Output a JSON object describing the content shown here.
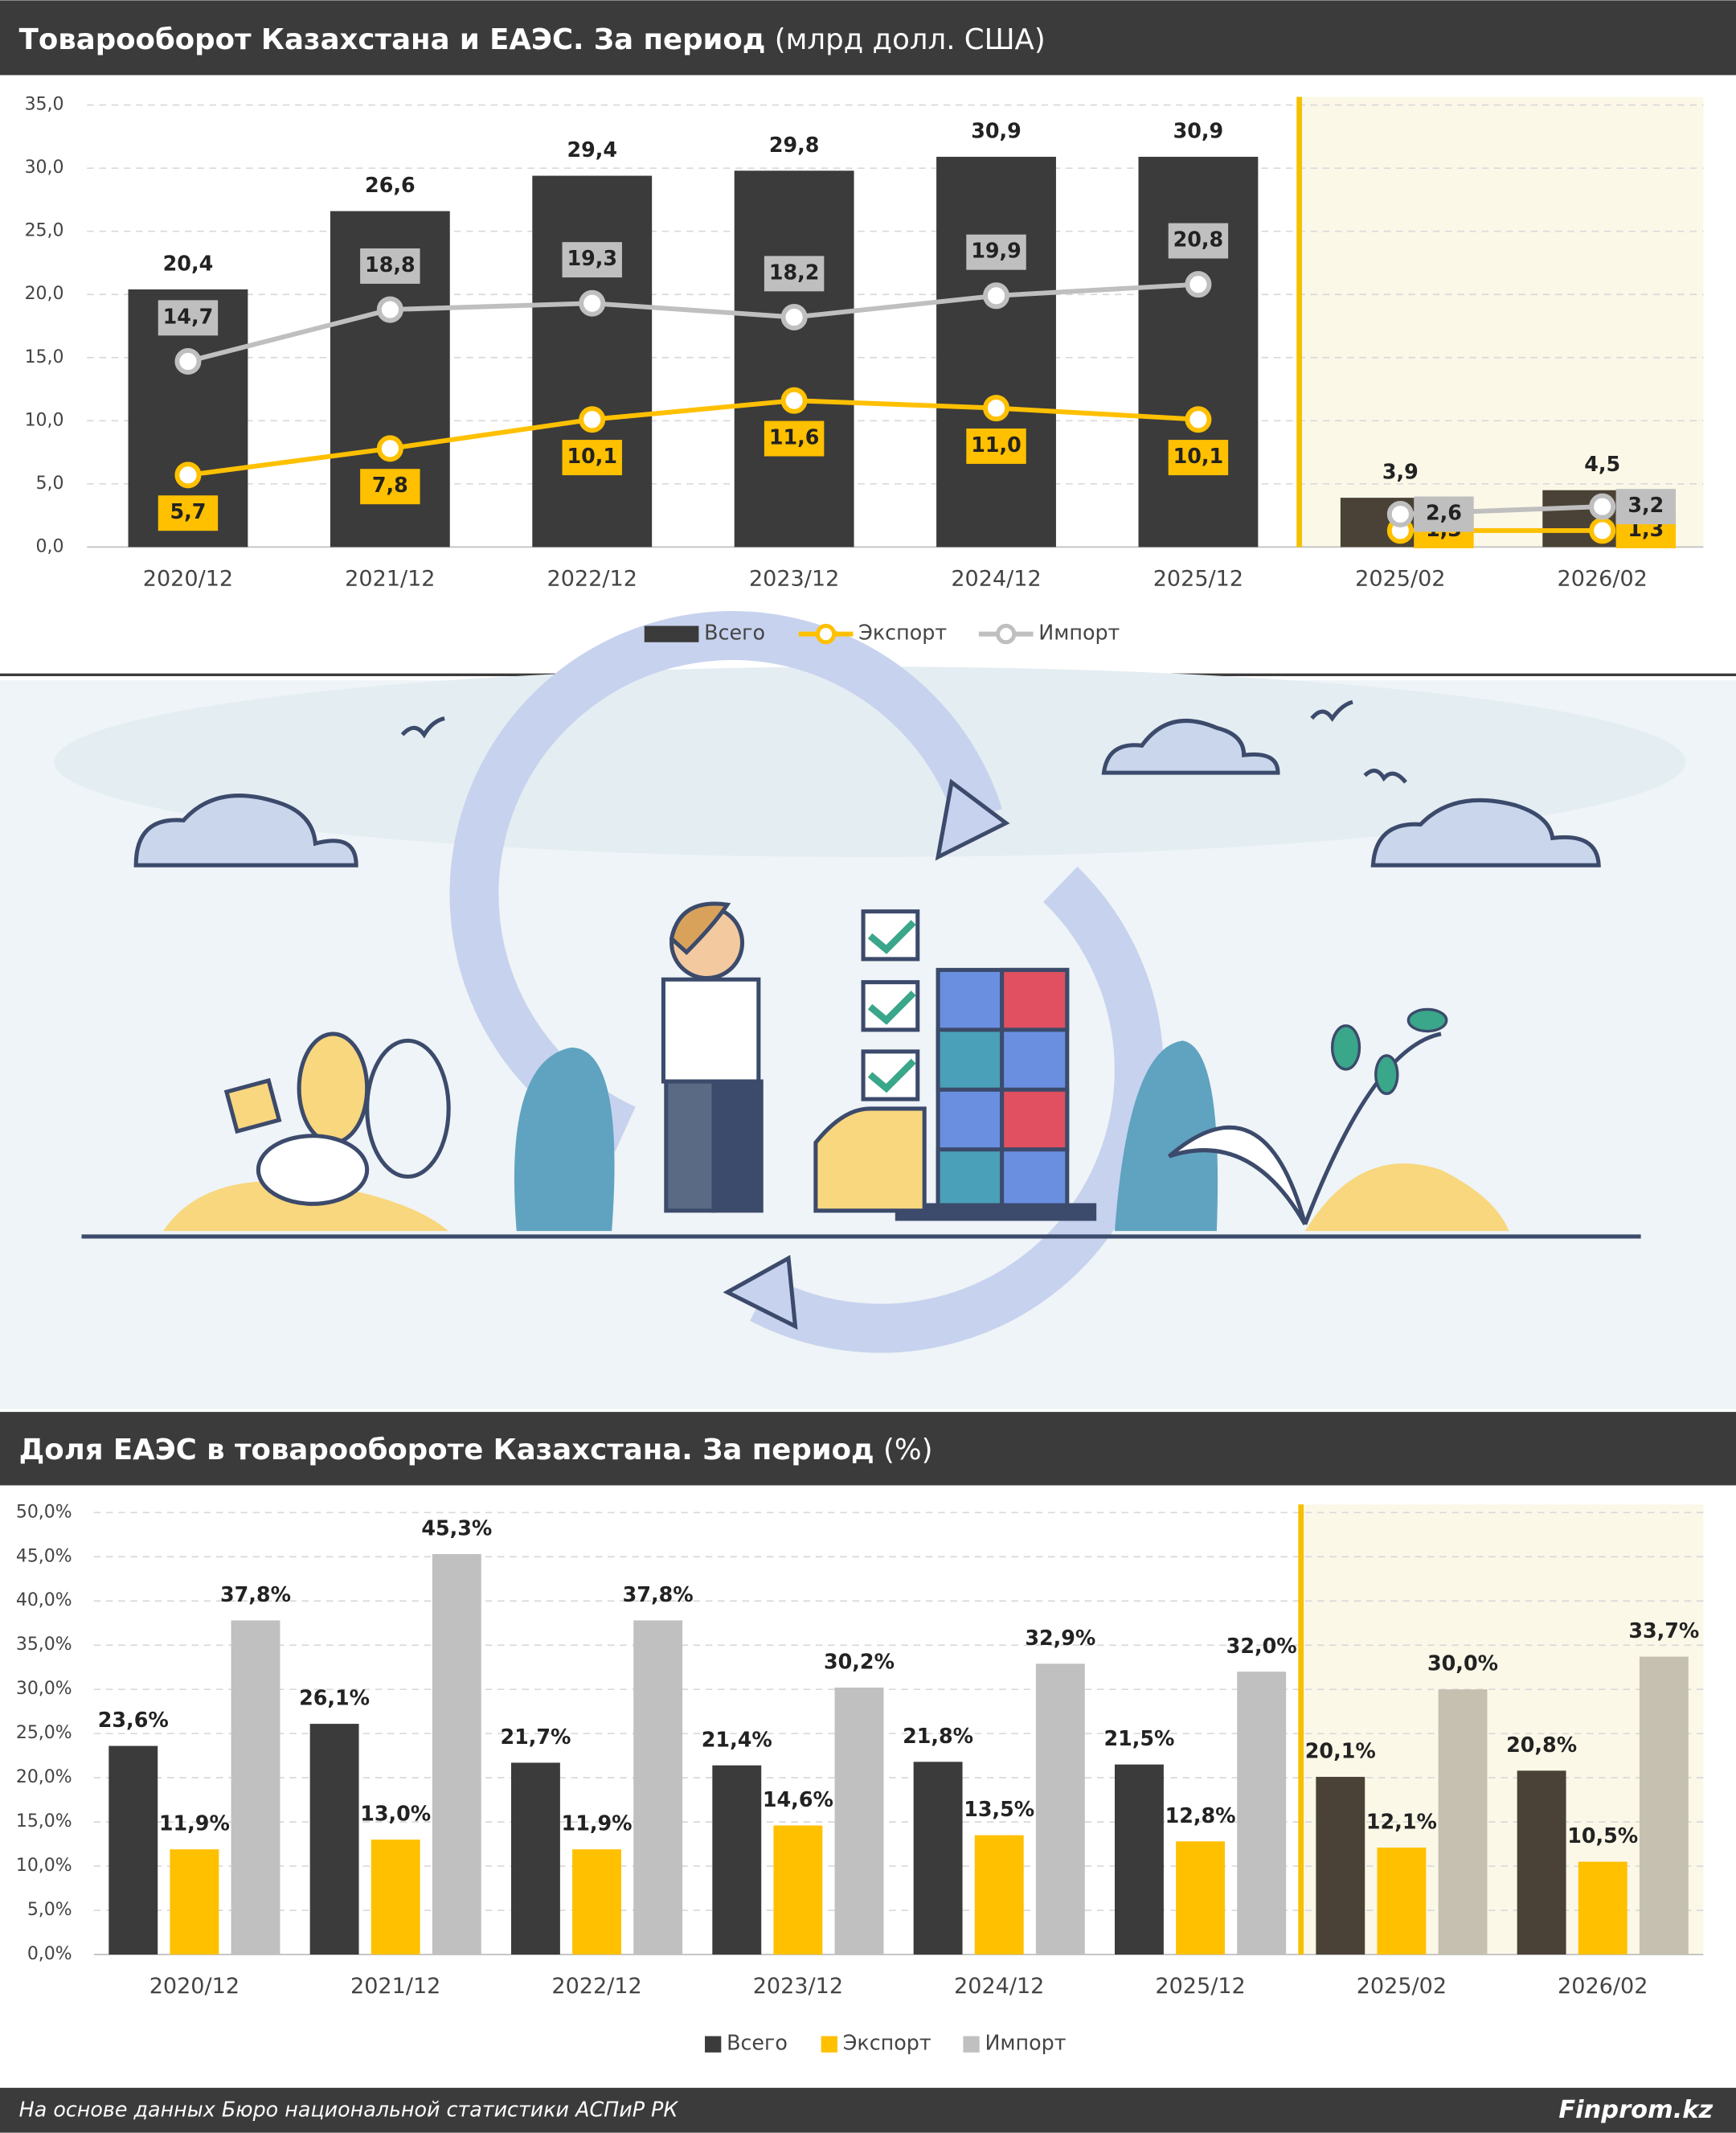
{
  "chart_data": [
    {
      "type": "combo",
      "title": "Товарооборот Казахстана и ЕАЭС. За период",
      "subtitle": "(млрд долл. США)",
      "categories": [
        "2020/12",
        "2021/12",
        "2022/12",
        "2023/12",
        "2024/12",
        "2025/12",
        "2025/02",
        "2026/02"
      ],
      "series": [
        {
          "name": "Всего",
          "type": "bar",
          "color": "#3b3b3b",
          "highlight_color": "#4a4236",
          "label_position": "top",
          "values": [
            20.4,
            26.6,
            29.4,
            29.8,
            30.9,
            30.9,
            3.9,
            4.5
          ],
          "value_labels": [
            "20,4",
            "26,6",
            "29,4",
            "29,8",
            "30,9",
            "30,9",
            "3,9",
            "4,5"
          ]
        },
        {
          "name": "Экспорт",
          "type": "line",
          "color": "#ffc000",
          "label_position": "below",
          "values": [
            5.7,
            7.8,
            10.1,
            11.6,
            11.0,
            10.1,
            1.3,
            1.3
          ],
          "value_labels": [
            "5,7",
            "7,8",
            "10,1",
            "11,6",
            "11,0",
            "10,1",
            "1,3",
            "1,3"
          ]
        },
        {
          "name": "Импорт",
          "type": "line",
          "color": "#bfbfbf",
          "label_position": "above",
          "values": [
            14.7,
            18.8,
            19.3,
            18.2,
            19.9,
            20.8,
            2.6,
            3.2
          ],
          "value_labels": [
            "14,7",
            "18,8",
            "19,3",
            "18,2",
            "19,9",
            "20,8",
            "2,6",
            "3,2"
          ]
        }
      ],
      "ylim": [
        0,
        35
      ],
      "yticks": [
        {
          "value": 0,
          "label": "0,0"
        },
        {
          "value": 5,
          "label": "5,0"
        },
        {
          "value": 10,
          "label": "10,0"
        },
        {
          "value": 15,
          "label": "15,0"
        },
        {
          "value": 20,
          "label": "20,0"
        },
        {
          "value": 25,
          "label": "25,0"
        },
        {
          "value": 30,
          "label": "30,0"
        },
        {
          "value": 35,
          "label": "35,0"
        }
      ],
      "grid": true,
      "highlight_from": 6,
      "highlight_color": "#fbf8e8",
      "highlight_line_color": "#f5c000",
      "legend": "bottom"
    },
    {
      "type": "bar",
      "title": "Доля ЕАЭС в товарообороте Казахстана. За период",
      "subtitle": "(%)",
      "categories": [
        "2020/12",
        "2021/12",
        "2022/12",
        "2023/12",
        "2024/12",
        "2025/12",
        "2025/02",
        "2026/02"
      ],
      "series": [
        {
          "name": "Всего",
          "type": "bar",
          "color": "#3b3b3b",
          "highlight_color": "#4a4236",
          "values": [
            23.6,
            26.1,
            21.7,
            21.4,
            21.8,
            21.5,
            20.1,
            20.8
          ],
          "value_labels": [
            "23,6%",
            "26,1%",
            "21,7%",
            "21,4%",
            "21,8%",
            "21,5%",
            "20,1%",
            "20,8%"
          ]
        },
        {
          "name": "Экспорт",
          "type": "bar",
          "color": "#ffc000",
          "highlight_color": "#ffc000",
          "values": [
            11.9,
            13.0,
            11.9,
            14.6,
            13.5,
            12.8,
            12.1,
            10.5
          ],
          "value_labels": [
            "11,9%",
            "13,0%",
            "11,9%",
            "14,6%",
            "13,5%",
            "12,8%",
            "12,1%",
            "10,5%"
          ]
        },
        {
          "name": "Импорт",
          "type": "bar",
          "color": "#c0c0c0",
          "highlight_color": "#c6c0b0",
          "values": [
            37.8,
            45.3,
            37.8,
            30.2,
            32.9,
            32.0,
            30.0,
            33.7
          ],
          "value_labels": [
            "37,8%",
            "45,3%",
            "37,8%",
            "30,2%",
            "32,9%",
            "32,0%",
            "30,0%",
            "33,7%"
          ]
        }
      ],
      "ylim": [
        0,
        50
      ],
      "yticks": [
        {
          "value": 0,
          "label": "0,0%"
        },
        {
          "value": 5,
          "label": "5,0%"
        },
        {
          "value": 10,
          "label": "10,0%"
        },
        {
          "value": 15,
          "label": "15,0%"
        },
        {
          "value": 20,
          "label": "20,0%"
        },
        {
          "value": 25,
          "label": "25,0%"
        },
        {
          "value": 30,
          "label": "30,0%"
        },
        {
          "value": 35,
          "label": "35,0%"
        },
        {
          "value": 40,
          "label": "40,0%"
        },
        {
          "value": 45,
          "label": "45,0%"
        },
        {
          "value": 50,
          "label": "50,0%"
        }
      ],
      "grid": true,
      "highlight_from": 6,
      "highlight_color": "#fbf8e8",
      "highlight_line_color": "#f5c000",
      "legend": "bottom"
    }
  ],
  "footer": {
    "source": "На основе данных Бюро национальной статистики АСПиР РК",
    "brand": "Finprom.kz"
  }
}
